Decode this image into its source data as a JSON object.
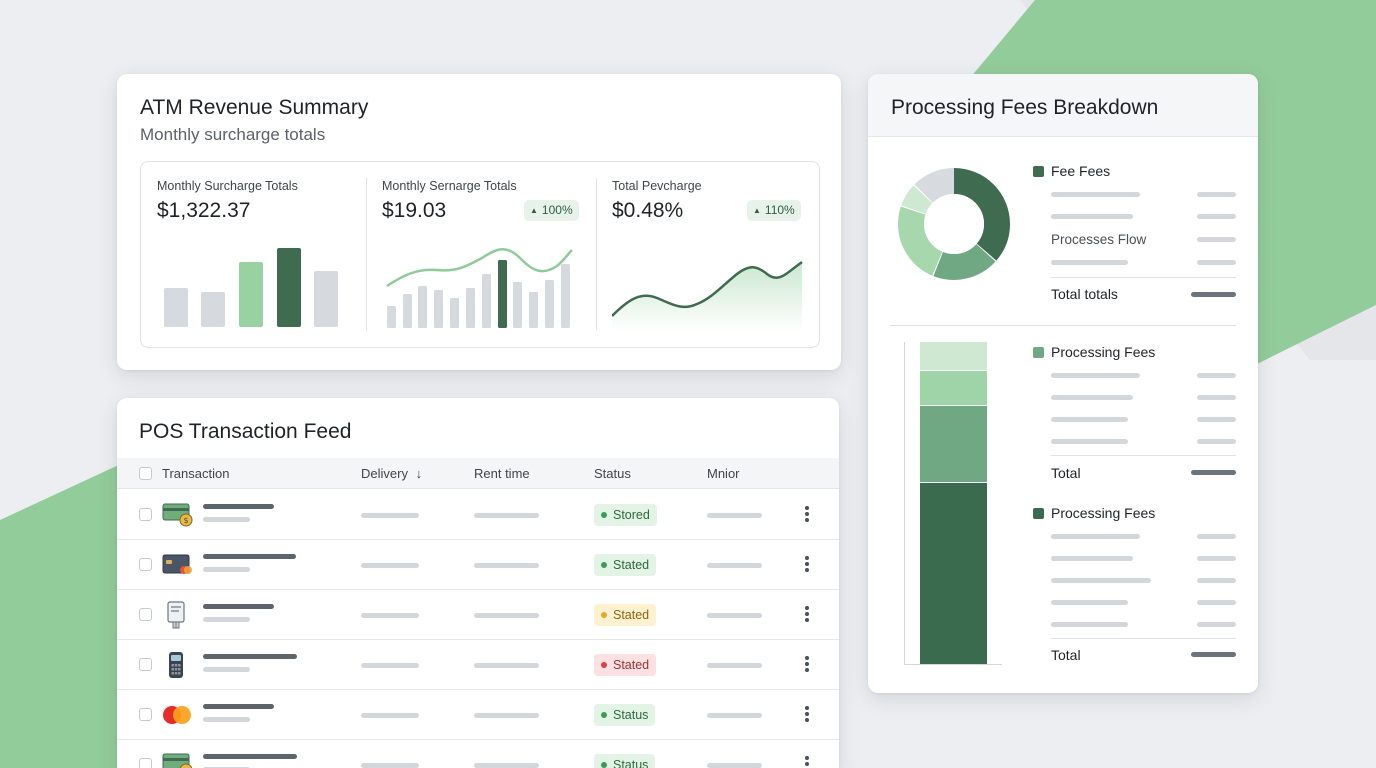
{
  "background": {
    "base": "#eceef1",
    "accent": "#8fcb98"
  },
  "atm_card": {
    "title": "ATM Revenue Summary",
    "subtitle": "Monthly surcharge totals",
    "kpis": [
      {
        "label": "Monthly Surcharge Totals",
        "value": "$1,322.37",
        "badge": ""
      },
      {
        "label": "Monthly Sernarge Totals",
        "value": "$19.03",
        "badge": "100%",
        "badge_icon": "triangle-up-icon"
      },
      {
        "label": "Total Pevcharge",
        "value": "$0.48%",
        "badge": "110%",
        "badge_icon": "triangle-up-icon"
      }
    ]
  },
  "pos_card": {
    "title": "POS Transaction Feed",
    "columns": {
      "transaction": "Transaction",
      "delivery": "Delivery",
      "rent_time": "Rent time",
      "status": "Status",
      "minor": "Mnior"
    },
    "sort_icon": "arrow-down-icon",
    "rows": [
      {
        "icon": "cash-coin-icon",
        "status": "Stored",
        "status_color": "green"
      },
      {
        "icon": "credit-card-icon",
        "status": "Stated",
        "status_color": "green"
      },
      {
        "icon": "receipt-printer-icon",
        "status": "Stated",
        "status_color": "yellow"
      },
      {
        "icon": "pos-terminal-icon",
        "status": "Stated",
        "status_color": "red"
      },
      {
        "icon": "mastercard-icon",
        "status": "Status",
        "status_color": "green"
      },
      {
        "icon": "cash-coin-icon",
        "status": "Status",
        "status_color": "green"
      }
    ]
  },
  "fees_card": {
    "title": "Processing Fees Breakdown",
    "section1": {
      "legend": "Fee Fees",
      "item_label": "Processes Flow",
      "total": "Total totals"
    },
    "section2": {
      "legend": "Processing Fees",
      "total": "Total"
    },
    "section3": {
      "legend": "Processing Fees",
      "total": "Total"
    }
  },
  "colors": {
    "dark_green": "#3b6b4f",
    "mid_green": "#6fa883",
    "light_green": "#9fd3a8",
    "pale_green": "#c9e6cd",
    "status_green_bg": "#e3f3e6",
    "status_green_text": "#2d6a3e",
    "status_yellow_bg": "#fdf1cf",
    "status_yellow_text": "#8a6416",
    "status_red_bg": "#fbe1e1",
    "status_red_text": "#9a3434"
  }
}
